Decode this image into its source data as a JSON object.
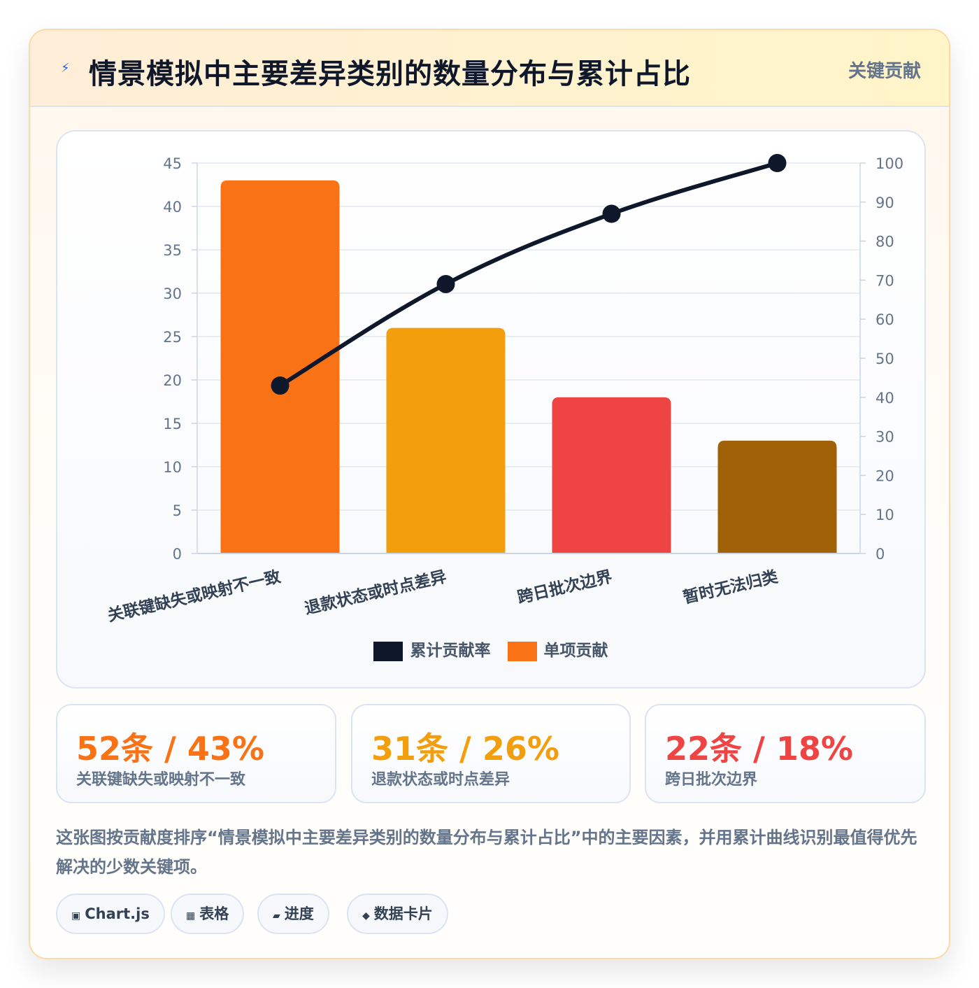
{
  "header": {
    "icon": "lightning-icon",
    "title": "情景模拟中主要差异类别的数量分布与累计占比",
    "tag": "关键贡献"
  },
  "chart_data": {
    "type": "bar",
    "categories": [
      "关联键缺失或映射不一致",
      "退款状态或时点差异",
      "跨日批次边界",
      "暂时无法归类"
    ],
    "series": [
      {
        "name": "单项贡献",
        "type": "bar",
        "axis": "left",
        "values": [
          43,
          26,
          18,
          13
        ],
        "colors": [
          "#f97316",
          "#f29e0d",
          "#ef4444",
          "#a16207"
        ]
      },
      {
        "name": "累计贡献率",
        "type": "line",
        "axis": "right",
        "values": [
          43,
          69,
          87,
          100
        ],
        "color": "#0f172a"
      }
    ],
    "y_left": {
      "min": 0,
      "max": 45,
      "ticks": [
        "0",
        "5",
        "10",
        "15",
        "20",
        "25",
        "30",
        "35",
        "40",
        "45"
      ]
    },
    "y_right": {
      "min": 0,
      "max": 100,
      "ticks": [
        "0",
        "10",
        "20",
        "30",
        "40",
        "50",
        "60",
        "70",
        "80",
        "90",
        "100"
      ]
    },
    "grid": true,
    "legend_position": "bottom",
    "legend": [
      {
        "label": "累计贡献率",
        "color": "#0f172a"
      },
      {
        "label": "单项贡献",
        "color": "#f97316"
      }
    ]
  },
  "stats": [
    {
      "value": "52条 / 43%",
      "label": "关联键缺失或映射不一致",
      "color": "#f97316"
    },
    {
      "value": "31条 / 26%",
      "label": "退款状态或时点差异",
      "color": "#f29e0d"
    },
    {
      "value": "22条 / 18%",
      "label": "跨日批次边界",
      "color": "#ef4444"
    }
  ],
  "description": "这张图按贡献度排序“情景模拟中主要差异类别的数量分布与累计占比”中的主要因素，并用累计曲线识别最值得优先解决的少数关键项。",
  "tags": [
    {
      "icon": "▣",
      "label": "Chart.js"
    },
    {
      "icon": "▦",
      "label": "表格"
    },
    {
      "icon": "▰",
      "label": "进度"
    },
    {
      "icon": "◆",
      "label": "数据卡片"
    }
  ]
}
